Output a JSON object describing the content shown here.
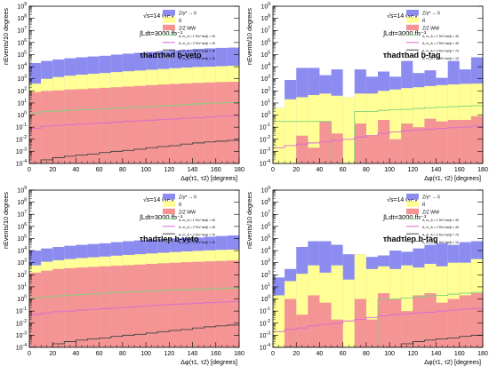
{
  "legend_entries": [
    {
      "key": "zll",
      "label": "Z/γ* → ll",
      "color": "#8c8cf0"
    },
    {
      "key": "tt",
      "label": "tt̄",
      "color": "#ffff96"
    },
    {
      "key": "dib",
      "label": "Z/Z WW",
      "color": "#f49494"
    },
    {
      "key": "s1",
      "label": "A,  m_A = 1  TeV    tanβ = 40",
      "color": "#7dd27d"
    },
    {
      "key": "s2",
      "label": "A,  m_A = 2  TeV    tanβ = 40",
      "color": "#d66ad6"
    },
    {
      "key": "s3",
      "label": "A,  m_A = 3  TeV    tanβ = 70",
      "color": "#444444"
    },
    {
      "key": "s4",
      "label": "A,  m_A = 1  TeV    tanβ = 10",
      "color": "#777777"
    }
  ],
  "chart_data": [
    {
      "type": "area",
      "stacked": true,
      "log_y": true,
      "grid": false,
      "legend_position": "top-right",
      "energy_label": "√s=14 GeV",
      "lumi_label": "∫Ldt=3000 fb⁻¹",
      "channel": "τhadτhad",
      "tag": "b-veto",
      "xlabel": "Δφ(τ1, τ2)  [degrees]",
      "ylabel": "nEvents/10 degrees",
      "xlim": [
        0,
        180
      ],
      "ylim": [
        0.0001,
        1000000000
      ],
      "x": [
        0,
        10,
        20,
        30,
        40,
        50,
        60,
        70,
        80,
        90,
        100,
        110,
        120,
        130,
        140,
        150,
        160,
        170
      ],
      "series": [
        {
          "key": "dib",
          "values": [
            80,
            100,
            110,
            130,
            140,
            160,
            180,
            200,
            230,
            260,
            300,
            340,
            380,
            420,
            460,
            500,
            540,
            560
          ]
        },
        {
          "key": "tt",
          "values": [
            400,
            1000,
            1400,
            1800,
            2200,
            2600,
            3000,
            3600,
            4200,
            4800,
            5600,
            6500,
            7500,
            8500,
            9500,
            10000,
            11000,
            12000
          ]
        },
        {
          "key": "zll",
          "values": [
            20000,
            30000,
            40000,
            50000,
            60000,
            70000,
            80000,
            100000,
            120000,
            140000,
            170000,
            200000,
            230000,
            260000,
            300000,
            330000,
            360000,
            380000
          ]
        },
        {
          "key": "s1",
          "line": true,
          "values": [
            1.5,
            2,
            2.2,
            2.5,
            2.8,
            3,
            3.4,
            3.8,
            4.2,
            4.6,
            5.2,
            5.8,
            6.5,
            7.5,
            8.5,
            9.5,
            10,
            11
          ]
        },
        {
          "key": "s2",
          "line": true,
          "values": [
            0.08,
            0.12,
            0.14,
            0.16,
            0.18,
            0.2,
            0.22,
            0.26,
            0.3,
            0.34,
            0.38,
            0.42,
            0.48,
            0.55,
            0.6,
            0.7,
            0.8,
            0.9
          ]
        },
        {
          "key": "s3",
          "line": true,
          "values": [
            0.0001,
            0.0002,
            0.0003,
            0.0004,
            0.0005,
            0.0006,
            0.0008,
            0.001,
            0.0012,
            0.0015,
            0.002,
            0.0025,
            0.003,
            0.004,
            0.005,
            0.006,
            0.007,
            0.008
          ]
        }
      ]
    },
    {
      "type": "area",
      "stacked": true,
      "log_y": true,
      "grid": false,
      "legend_position": "top-right",
      "energy_label": "√s=14 GeV",
      "lumi_label": "∫Ldt=3000 fb⁻¹",
      "channel": "τhadτhad",
      "tag": "b-tag",
      "xlabel": "Δφ(τ1, τ2)  [degrees]",
      "ylabel": "nEvents/10 degrees",
      "xlim": [
        0,
        180
      ],
      "ylim": [
        0.0001,
        1000000000
      ],
      "x": [
        0,
        10,
        20,
        30,
        40,
        50,
        60,
        70,
        80,
        90,
        100,
        110,
        120,
        130,
        140,
        150,
        160,
        170
      ],
      "series": [
        {
          "key": "dib",
          "values": [
            0.0001,
            0.0001,
            0.02,
            0.002,
            0.3,
            0.03,
            0.0001,
            0.2,
            0.02,
            0.4,
            0.01,
            0.2,
            0.1,
            0.5,
            0.3,
            0.4,
            0.4,
            0.8
          ]
        },
        {
          "key": "tt",
          "values": [
            4,
            20,
            30,
            45,
            60,
            40,
            30,
            60,
            60,
            100,
            130,
            170,
            200,
            250,
            300,
            340,
            380,
            400
          ]
        },
        {
          "key": "zll",
          "values": [
            4,
            800,
            8000,
            8000,
            2000,
            6000,
            30,
            6000,
            1500,
            4000,
            1500,
            30000,
            3000,
            5000,
            1200,
            30000,
            6000,
            60000
          ]
        },
        {
          "key": "s1",
          "line": true,
          "values": [
            0.3,
            0.3,
            0.3,
            0.3,
            0.3,
            0.0001,
            0.0001,
            2,
            2,
            2.5,
            2.8,
            3,
            3.5,
            4,
            4.5,
            5,
            5.5,
            6
          ]
        },
        {
          "key": "s2",
          "line": true,
          "values": [
            0.002,
            0.003,
            0.004,
            0.005,
            0.006,
            0.008,
            0.01,
            0.015,
            0.02,
            0.03,
            0.04,
            0.05,
            0.06,
            0.07,
            0.08,
            0.09,
            0.1,
            0.12
          ]
        }
      ]
    },
    {
      "type": "area",
      "stacked": true,
      "log_y": true,
      "grid": false,
      "legend_position": "top-right",
      "energy_label": "√s=14 GeV",
      "lumi_label": "∫Ldt=3000 fb⁻¹",
      "channel": "τhadτlep",
      "tag": "b-veto",
      "xlabel": "Δφ(τ1, τ2)  [degrees]",
      "ylabel": "nEvents/10 degrees",
      "xlim": [
        0,
        180
      ],
      "ylim": [
        0.0001,
        1000000000
      ],
      "x": [
        0,
        10,
        20,
        30,
        40,
        50,
        60,
        70,
        80,
        90,
        100,
        110,
        120,
        130,
        140,
        150,
        160,
        170
      ],
      "series": [
        {
          "key": "dib",
          "values": [
            150,
            220,
            300,
            350,
            400,
            450,
            500,
            560,
            620,
            700,
            800,
            900,
            1000,
            1100,
            1200,
            1300,
            1400,
            1500
          ]
        },
        {
          "key": "tt",
          "values": [
            600,
            1200,
            1600,
            2000,
            2400,
            2800,
            3200,
            3800,
            4400,
            5000,
            5800,
            6600,
            7600,
            8500,
            9500,
            10500,
            11500,
            12000
          ]
        },
        {
          "key": "zll",
          "values": [
            10000,
            15000,
            20000,
            25000,
            30000,
            35000,
            40000,
            50000,
            60000,
            70000,
            80000,
            90000,
            100000,
            110000,
            120000,
            140000,
            160000,
            180000
          ]
        },
        {
          "key": "s1",
          "line": true,
          "values": [
            1.2,
            1.5,
            1.8,
            2,
            2.3,
            2.6,
            3,
            3.4,
            3.8,
            4.2,
            4.6,
            5,
            5.6,
            6,
            6.5,
            7,
            7.5,
            8
          ]
        },
        {
          "key": "s2",
          "line": true,
          "values": [
            0.05,
            0.07,
            0.09,
            0.1,
            0.12,
            0.14,
            0.16,
            0.18,
            0.2,
            0.24,
            0.28,
            0.32,
            0.36,
            0.4,
            0.45,
            0.5,
            0.55,
            0.6
          ]
        },
        {
          "key": "s3",
          "line": true,
          "values": [
            0.0001,
            0.0001,
            0.0002,
            0.0003,
            0.0004,
            0.0005,
            0.0006,
            0.0008,
            0.001,
            0.0012,
            0.0015,
            0.002,
            0.0025,
            0.003,
            0.004,
            0.005,
            0.006,
            0.007
          ]
        }
      ]
    },
    {
      "type": "area",
      "stacked": true,
      "log_y": true,
      "grid": false,
      "legend_position": "top-right",
      "energy_label": "√s=14 GeV",
      "lumi_label": "∫Ldt=3000 fb⁻¹",
      "channel": "τhadτlep",
      "tag": "b-tag",
      "xlabel": "Δφ(τ1, τ2)  [degrees]",
      "ylabel": "nEvents/10 degrees",
      "xlim": [
        0,
        180
      ],
      "ylim": [
        0.0001,
        1000000000
      ],
      "x": [
        0,
        10,
        20,
        30,
        40,
        50,
        60,
        70,
        80,
        90,
        100,
        110,
        120,
        130,
        140,
        150,
        160,
        170
      ],
      "series": [
        {
          "key": "dib",
          "values": [
            0.0001,
            1,
            0.05,
            2,
            0.5,
            0.02,
            0.0001,
            1,
            0.02,
            3,
            1,
            0.1,
            2,
            3,
            0.5,
            1,
            2,
            3
          ]
        },
        {
          "key": "tt",
          "values": [
            2,
            30,
            120,
            600,
            150,
            600,
            40,
            5000,
            300,
            500,
            300,
            600,
            400,
            800,
            500,
            1000,
            1000,
            2000
          ]
        },
        {
          "key": "zll",
          "values": [
            60,
            300,
            20000,
            60000,
            60000,
            30000,
            5000,
            5000,
            3000,
            4000,
            10000,
            8000,
            15000,
            30000,
            40000,
            30000,
            50000,
            60000
          ]
        },
        {
          "key": "s1",
          "line": true,
          "values": [
            0.0001,
            0.0001,
            0.0001,
            0.0001,
            0.0001,
            0.0001,
            0.0001,
            0.0001,
            0.0001,
            1,
            1,
            1.2,
            1.5,
            1.8,
            2,
            2.5,
            3,
            3.5
          ]
        },
        {
          "key": "s2",
          "line": true,
          "values": [
            0.002,
            0.003,
            0.004,
            0.006,
            0.008,
            0.01,
            0.015,
            0.02,
            0.03,
            0.04,
            0.05,
            0.06,
            0.07,
            0.08,
            0.1,
            0.12,
            0.14,
            0.16
          ]
        },
        {
          "key": "s3",
          "line": true,
          "values": [
            0.0001,
            0.0001,
            0.0001,
            0.0001,
            0.0001,
            0.0001,
            0.0001,
            0.0001,
            0.0001,
            0.0001,
            0.0001,
            0.0002,
            0.0003,
            0.0004,
            0.0005,
            0.0006,
            0.0008,
            0.001
          ]
        }
      ]
    }
  ]
}
